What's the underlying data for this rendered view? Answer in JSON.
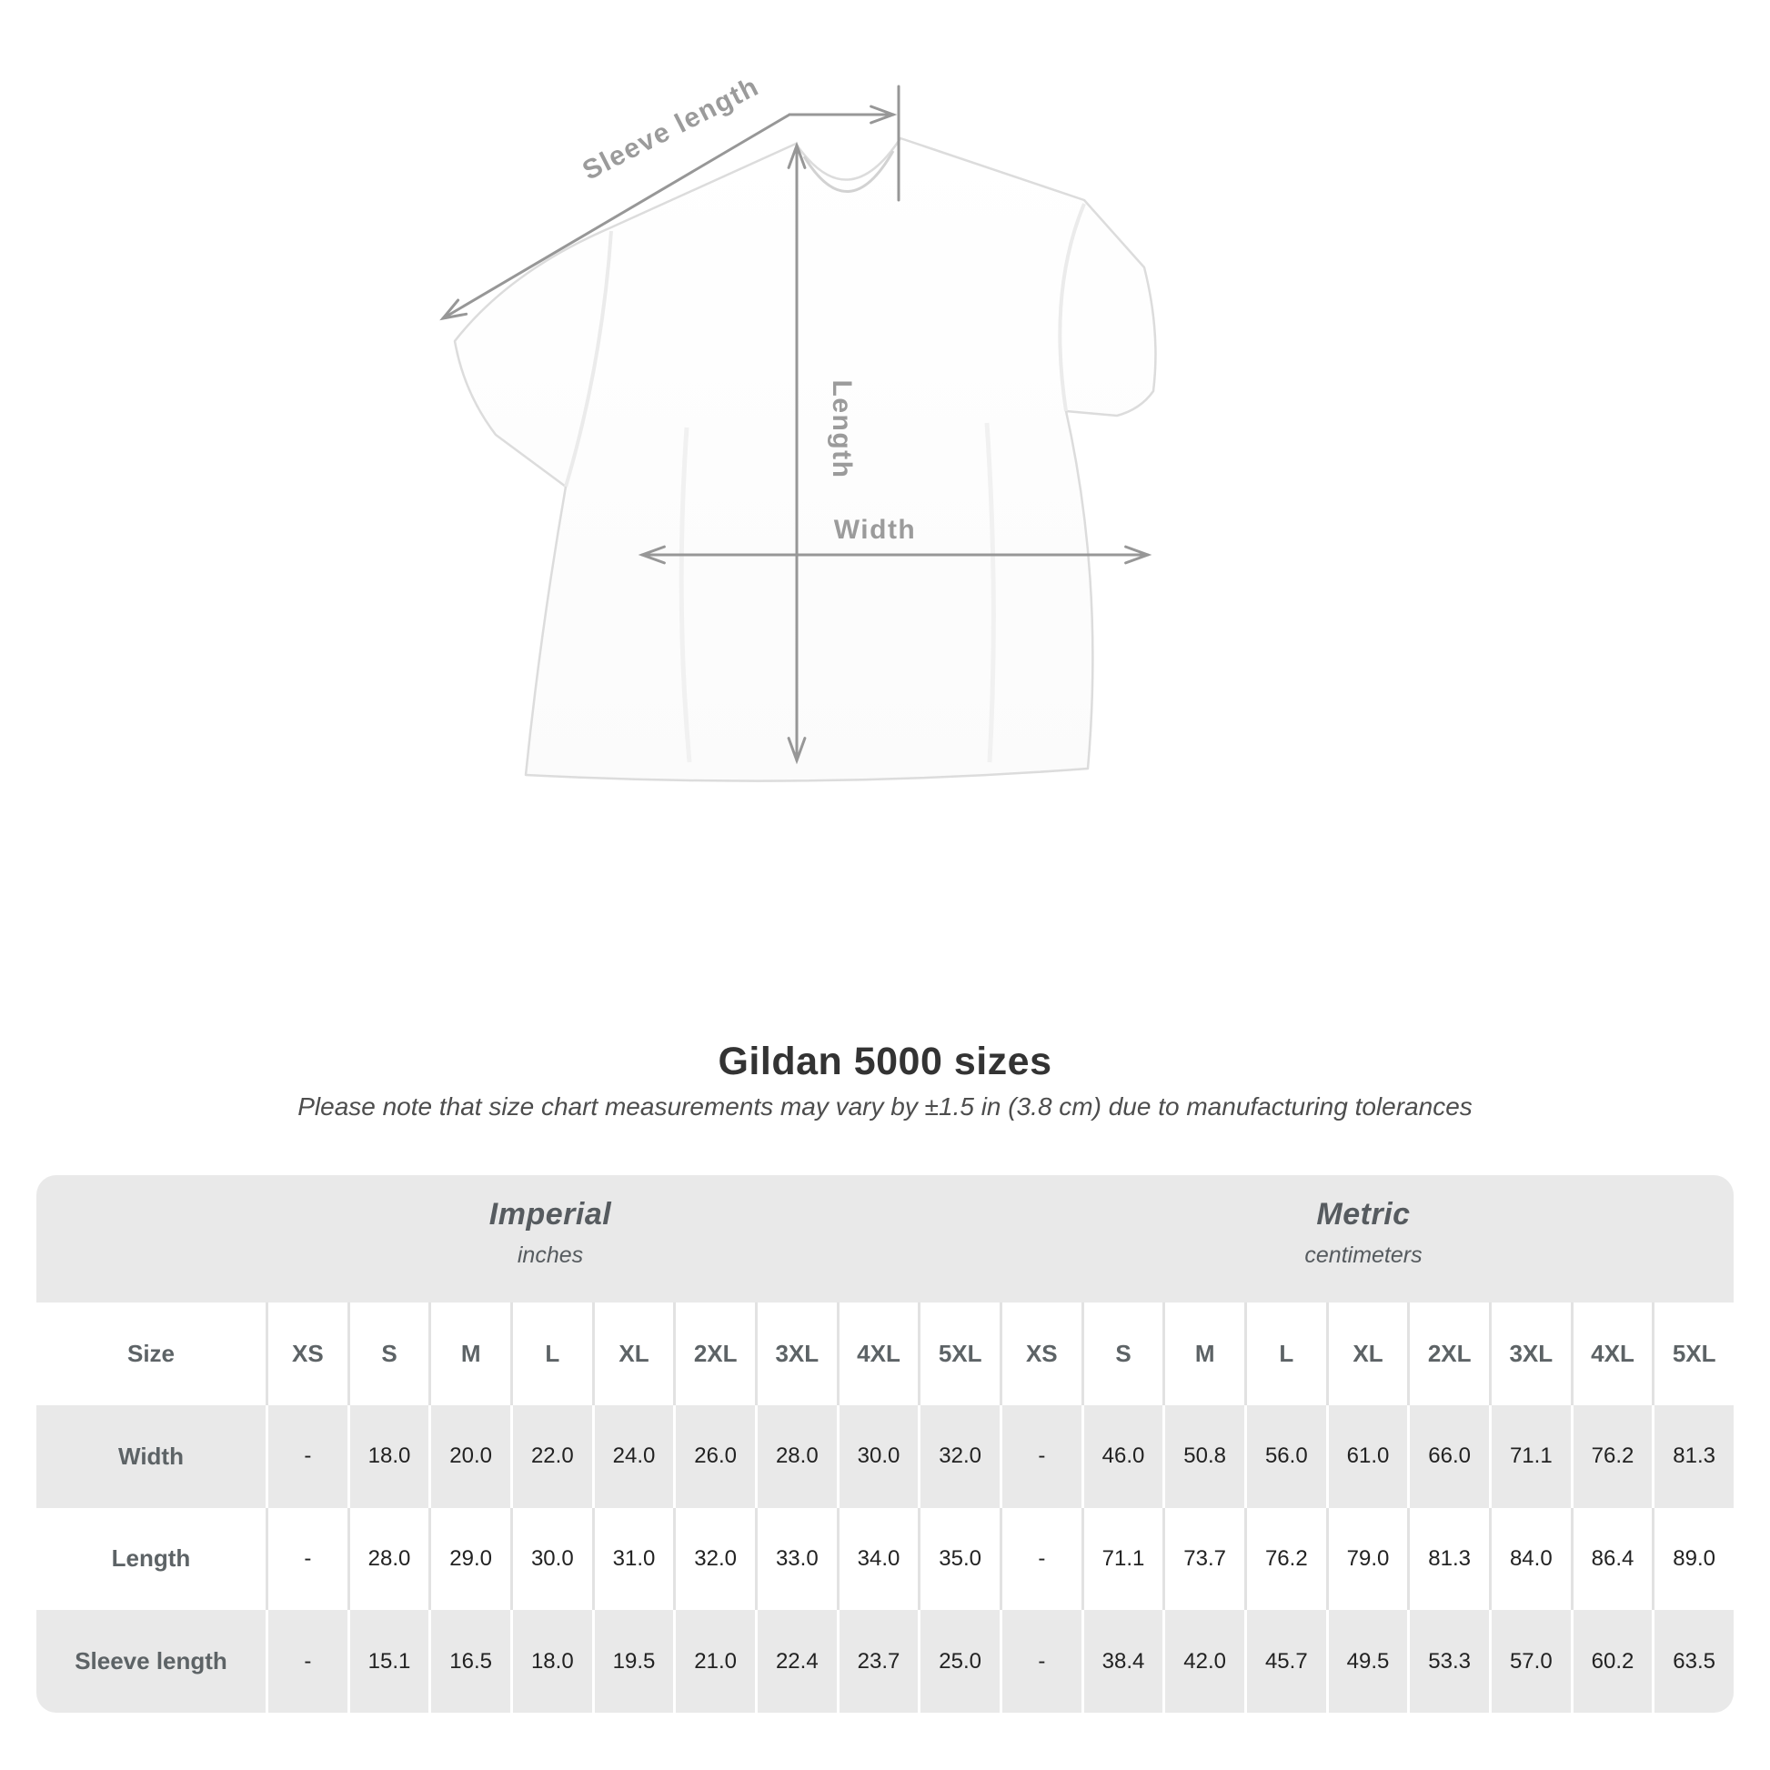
{
  "diagram": {
    "sleeve_length_label": "Sleeve length",
    "length_label": "Length",
    "width_label": "Width"
  },
  "title": "Gildan 5000 sizes",
  "note": "Please note that size chart measurements may vary by ±1.5 in (3.8 cm) due to manufacturing tolerances",
  "table": {
    "sections": [
      {
        "name": "Imperial",
        "unit": "inches"
      },
      {
        "name": "Metric",
        "unit": "centimeters"
      }
    ],
    "size_header_label": "Size",
    "sizes": [
      "XS",
      "S",
      "M",
      "L",
      "XL",
      "2XL",
      "3XL",
      "4XL",
      "5XL"
    ],
    "rows": [
      {
        "label": "Width",
        "imperial": [
          "-",
          "18.0",
          "20.0",
          "22.0",
          "24.0",
          "26.0",
          "28.0",
          "30.0",
          "32.0"
        ],
        "metric": [
          "-",
          "46.0",
          "50.8",
          "56.0",
          "61.0",
          "66.0",
          "71.1",
          "76.2",
          "81.3"
        ]
      },
      {
        "label": "Length",
        "imperial": [
          "-",
          "28.0",
          "29.0",
          "30.0",
          "31.0",
          "32.0",
          "33.0",
          "34.0",
          "35.0"
        ],
        "metric": [
          "-",
          "71.1",
          "73.7",
          "76.2",
          "79.0",
          "81.3",
          "84.0",
          "86.4",
          "89.0"
        ]
      },
      {
        "label": "Sleeve length",
        "imperial": [
          "-",
          "15.1",
          "16.5",
          "18.0",
          "19.5",
          "21.0",
          "22.4",
          "23.7",
          "25.0"
        ],
        "metric": [
          "-",
          "38.4",
          "42.0",
          "45.7",
          "49.5",
          "53.3",
          "57.0",
          "60.2",
          "63.5"
        ]
      }
    ]
  },
  "colors": {
    "stripe_gray": "#e9e9e9",
    "separator_gray": "#e2e2e2",
    "arrow_gray": "#979797",
    "diagram_label_gray": "#9b9b9b",
    "section_header_text": "#565b5f",
    "value_text": "#222222"
  }
}
